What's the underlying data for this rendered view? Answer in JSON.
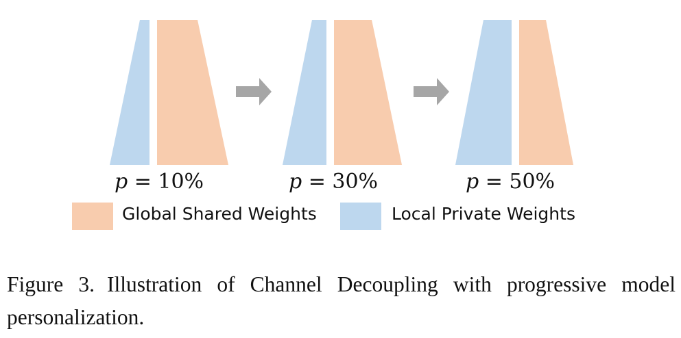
{
  "colors": {
    "global_shared": "#F8CCAE",
    "local_private": "#BDD7EE",
    "arrow": "#A6A6A6"
  },
  "stages": [
    {
      "p_var": "p",
      "p_eq": " = 10%",
      "local_fraction": 0.1
    },
    {
      "p_var": "p",
      "p_eq": " = 30%",
      "local_fraction": 0.3
    },
    {
      "p_var": "p",
      "p_eq": " = 50%",
      "local_fraction": 0.5
    }
  ],
  "legend": {
    "global_label": "Global Shared Weights",
    "local_label": "Local Private Weights"
  },
  "caption": {
    "number": "Figure 3.",
    "text": "Illustration of Channel Decoupling with progressive model personalization."
  }
}
